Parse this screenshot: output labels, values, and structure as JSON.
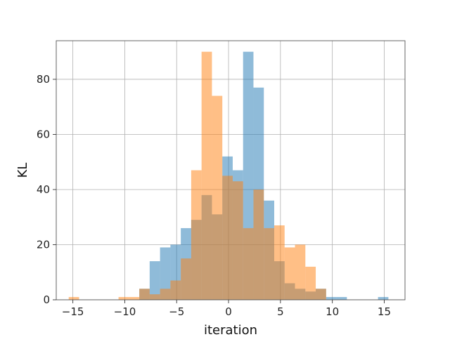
{
  "chart_data": {
    "type": "histogram",
    "xlabel": "iteration",
    "ylabel": "KL",
    "xlim": [
      -16.6,
      17.0
    ],
    "ylim": [
      0,
      94
    ],
    "grid": true,
    "bin_width": 1.0,
    "series": [
      {
        "color": "#1f77b4",
        "opacity": 0.5,
        "bins": [
          {
            "x0": -8.6,
            "count": 4
          },
          {
            "x0": -7.6,
            "count": 14
          },
          {
            "x0": -6.6,
            "count": 19
          },
          {
            "x0": -5.6,
            "count": 20
          },
          {
            "x0": -4.6,
            "count": 26
          },
          {
            "x0": -3.6,
            "count": 29
          },
          {
            "x0": -2.6,
            "count": 38
          },
          {
            "x0": -1.6,
            "count": 31
          },
          {
            "x0": -0.6,
            "count": 52
          },
          {
            "x0": 0.4,
            "count": 47
          },
          {
            "x0": 1.4,
            "count": 90
          },
          {
            "x0": 2.4,
            "count": 77
          },
          {
            "x0": 3.4,
            "count": 36
          },
          {
            "x0": 4.4,
            "count": 14
          },
          {
            "x0": 5.4,
            "count": 6
          },
          {
            "x0": 6.4,
            "count": 4
          },
          {
            "x0": 7.4,
            "count": 3
          },
          {
            "x0": 8.4,
            "count": 4
          },
          {
            "x0": 9.4,
            "count": 1
          },
          {
            "x0": 10.4,
            "count": 1
          },
          {
            "x0": 14.4,
            "count": 1
          }
        ]
      },
      {
        "color": "#ff7f0e",
        "opacity": 0.5,
        "bins": [
          {
            "x0": -15.4,
            "count": 1
          },
          {
            "x0": -10.6,
            "count": 1
          },
          {
            "x0": -9.6,
            "count": 1
          },
          {
            "x0": -8.6,
            "count": 4
          },
          {
            "x0": -7.6,
            "count": 2
          },
          {
            "x0": -6.6,
            "count": 4
          },
          {
            "x0": -5.6,
            "count": 7
          },
          {
            "x0": -4.6,
            "count": 15
          },
          {
            "x0": -3.6,
            "count": 47
          },
          {
            "x0": -2.6,
            "count": 90
          },
          {
            "x0": -1.6,
            "count": 74
          },
          {
            "x0": -0.6,
            "count": 45
          },
          {
            "x0": 0.4,
            "count": 43
          },
          {
            "x0": 1.4,
            "count": 26
          },
          {
            "x0": 2.4,
            "count": 40
          },
          {
            "x0": 3.4,
            "count": 26
          },
          {
            "x0": 4.4,
            "count": 27
          },
          {
            "x0": 5.4,
            "count": 19
          },
          {
            "x0": 6.4,
            "count": 20
          },
          {
            "x0": 7.4,
            "count": 12
          },
          {
            "x0": 8.4,
            "count": 4
          }
        ]
      }
    ],
    "x_ticks": [
      -15,
      -10,
      -5,
      0,
      5,
      10,
      15
    ],
    "y_ticks": [
      0,
      20,
      40,
      60,
      80
    ]
  }
}
